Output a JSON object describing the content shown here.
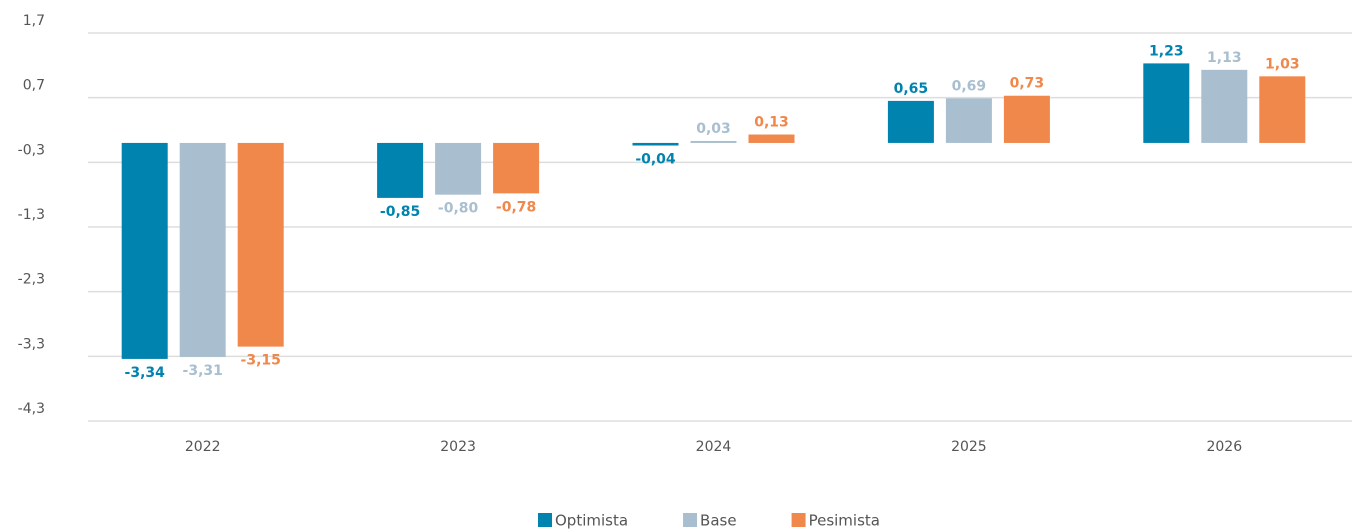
{
  "chart_data": {
    "type": "bar",
    "categories": [
      "2022",
      "2023",
      "2024",
      "2025",
      "2026"
    ],
    "series": [
      {
        "name": "Optimista",
        "color": "#0083ae",
        "values": [
          -3.34,
          -0.85,
          -0.04,
          0.65,
          1.23
        ],
        "value_labels": [
          "-3,34",
          "-0,85",
          "-0,04",
          "0,65",
          "1,23"
        ]
      },
      {
        "name": "Base",
        "color": "#a9bfcf",
        "values": [
          -3.31,
          -0.8,
          0.03,
          0.69,
          1.13
        ],
        "value_labels": [
          "-3,31",
          "-0,80",
          "0,03",
          "0,69",
          "1,13"
        ]
      },
      {
        "name": "Pesimista",
        "color": "#f0874b",
        "values": [
          -3.15,
          -0.78,
          0.13,
          0.73,
          1.03
        ],
        "value_labels": [
          "-3,15",
          "-0,78",
          "0,13",
          "0,73",
          "1,03"
        ]
      }
    ],
    "ylim": [
      -4.3,
      1.7
    ],
    "yticks": [
      {
        "value": 1.7,
        "label": "1,7"
      },
      {
        "value": 0.7,
        "label": "0,7"
      },
      {
        "value": -0.3,
        "label": "-0,3"
      },
      {
        "value": -1.3,
        "label": "-1,3"
      },
      {
        "value": -2.3,
        "label": "-2,3"
      },
      {
        "value": -3.3,
        "label": "-3,3"
      },
      {
        "value": -4.3,
        "label": "-4,3"
      }
    ],
    "grid": true,
    "legend": "bottom"
  }
}
